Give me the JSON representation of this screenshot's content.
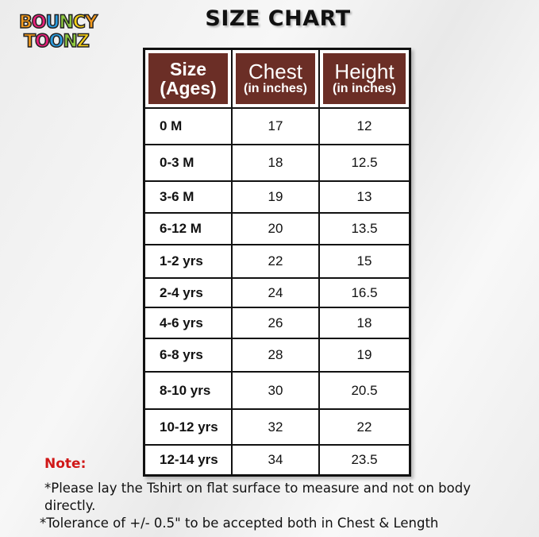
{
  "logo": {
    "line1": "BOUNCY",
    "line2": "TOONZ",
    "colors": [
      "#f39a1e",
      "#e8207a",
      "#2b9de0",
      "#8cc63f",
      "#f7d117"
    ]
  },
  "title": "SIZE CHART",
  "colors": {
    "header_bg": "#6b2e26",
    "note": "#d01818"
  },
  "chart_data": {
    "type": "table",
    "title": "SIZE CHART",
    "columns": [
      {
        "label": "Size",
        "sub": "(Ages)"
      },
      {
        "label": "Chest",
        "sub": "(in inches)"
      },
      {
        "label": "Height",
        "sub": "(in inches)"
      }
    ],
    "rows": [
      [
        "0 M",
        "17",
        "12"
      ],
      [
        "0-3 M",
        "18",
        "12.5"
      ],
      [
        "3-6 M",
        "19",
        "13"
      ],
      [
        "6-12 M",
        "20",
        "13.5"
      ],
      [
        "1-2 yrs",
        "22",
        "15"
      ],
      [
        "2-4 yrs",
        "24",
        "16.5"
      ],
      [
        "4-6 yrs",
        "26",
        "18"
      ],
      [
        "6-8 yrs",
        "28",
        "19"
      ],
      [
        "8-10 yrs",
        "30",
        "20.5"
      ],
      [
        "10-12 yrs",
        "32",
        "22"
      ],
      [
        "12-14 yrs",
        "34",
        "23.5"
      ]
    ]
  },
  "notes": {
    "heading": "Note:",
    "items": [
      "*Please lay the Tshirt on flat surface to measure and not on body directly.",
      "*Tolerance of +/- 0.5\" to be accepted both in Chest & Length"
    ]
  }
}
